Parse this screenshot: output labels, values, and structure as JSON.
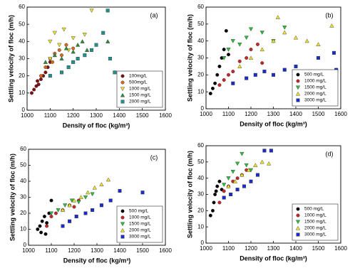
{
  "chart_data": [
    {
      "type": "scatter",
      "panel_label": "(a)",
      "xlabel": "Density  of floc (kg/m³)",
      "ylabel": "Settling velocity of floc (m/h)",
      "xlim": [
        1000,
        1600
      ],
      "ylim": [
        0,
        60
      ],
      "xticks": [
        1000,
        1100,
        1200,
        1300,
        1400,
        1500,
        1600
      ],
      "yticks": [
        0,
        10,
        20,
        30,
        40,
        50,
        60
      ],
      "legend": "lower right",
      "series": [
        {
          "name": "100mg/L",
          "color": "#7a1010",
          "marker": "circle",
          "x": [
            1020,
            1030,
            1040,
            1050,
            1060,
            1070,
            1080,
            1090,
            1100,
            1045
          ],
          "values": [
            10,
            12,
            14,
            15,
            18,
            20,
            22,
            25,
            28,
            17
          ]
        },
        {
          "name": "500mg/L",
          "color": "#d2691e",
          "marker": "circle",
          "x": [
            1060,
            1080,
            1100,
            1110,
            1120,
            1140,
            1150,
            1170,
            1200
          ],
          "values": [
            20,
            25,
            30,
            28,
            33,
            35,
            32,
            38,
            36
          ]
        },
        {
          "name": "1000 mg/L",
          "color": "#e8e030",
          "marker": "triangle-down",
          "x": [
            1100,
            1120,
            1140,
            1160,
            1180,
            1200,
            1250,
            1280,
            1100
          ],
          "values": [
            40,
            45,
            38,
            47,
            35,
            42,
            44,
            58,
            30
          ]
        },
        {
          "name": "1500 mg/L",
          "color": "#2e8b3a",
          "marker": "triangle-up",
          "x": [
            1080,
            1120,
            1150,
            1170,
            1200,
            1220,
            1240,
            1260,
            1350
          ],
          "values": [
            28,
            32,
            30,
            36,
            34,
            38,
            40,
            35,
            40
          ]
        },
        {
          "name": "2000 mg/L",
          "color": "#20908a",
          "marker": "square",
          "x": [
            1100,
            1150,
            1180,
            1200,
            1220,
            1250,
            1280,
            1300,
            1330,
            1350,
            1380,
            1360
          ],
          "values": [
            20,
            22,
            25,
            28,
            30,
            32,
            35,
            38,
            45,
            58,
            22,
            30
          ]
        }
      ]
    },
    {
      "type": "scatter",
      "panel_label": "(b)",
      "xlabel": "Density  of floc (kg/m³)",
      "ylabel": "Settling velocity of floc (m/h)",
      "xlim": [
        1000,
        1600
      ],
      "ylim": [
        0,
        60
      ],
      "xticks": [
        1000,
        1100,
        1200,
        1300,
        1400,
        1500,
        1600
      ],
      "yticks": [
        0,
        10,
        20,
        30,
        40,
        50,
        60
      ],
      "legend": "lower right",
      "series": [
        {
          "name": "500 mg/L",
          "color": "#000000",
          "marker": "circle",
          "x": [
            1020,
            1030,
            1040,
            1050,
            1060,
            1070,
            1080,
            1090,
            1100
          ],
          "values": [
            9,
            12,
            15,
            20,
            25,
            30,
            35,
            46,
            32
          ]
        },
        {
          "name": "1000 mg/L",
          "color": "#c0282a",
          "marker": "circle",
          "x": [
            1060,
            1080,
            1100,
            1120,
            1150,
            1180,
            1200,
            1230,
            1250
          ],
          "values": [
            14,
            17,
            20,
            22,
            28,
            30,
            35,
            38,
            27
          ]
        },
        {
          "name": "1500 mg/L",
          "color": "#2ebd3a",
          "marker": "triangle-down",
          "x": [
            1080,
            1100,
            1120,
            1150,
            1180,
            1200,
            1250,
            1300,
            1350
          ],
          "values": [
            30,
            35,
            40,
            38,
            42,
            47,
            45,
            40,
            48
          ]
        },
        {
          "name": "2000 mg/L",
          "color": "#e8e030",
          "marker": "triangle-up",
          "x": [
            1150,
            1200,
            1250,
            1300,
            1320,
            1350,
            1400,
            1450,
            1500,
            1560
          ],
          "values": [
            25,
            30,
            35,
            40,
            54,
            45,
            42,
            40,
            38,
            49
          ]
        },
        {
          "name": "3000 mg/L",
          "color": "#1a2cc8",
          "marker": "square",
          "x": [
            1120,
            1180,
            1220,
            1260,
            1300,
            1350,
            1400,
            1450,
            1500,
            1570,
            1580
          ],
          "values": [
            15,
            18,
            20,
            22,
            20,
            23,
            25,
            22,
            30,
            33,
            23
          ]
        }
      ]
    },
    {
      "type": "scatter",
      "panel_label": "(c)",
      "xlabel": "Density  of floc (kg/m³)",
      "ylabel": "Settling velocity of floc (m/h)",
      "xlim": [
        1000,
        1600
      ],
      "ylim": [
        0,
        60
      ],
      "xticks": [
        1000,
        1100,
        1200,
        1300,
        1400,
        1500,
        1600
      ],
      "yticks": [
        0,
        10,
        20,
        30,
        40,
        50,
        60
      ],
      "legend": "lower right",
      "series": [
        {
          "name": "500 mg/L",
          "color": "#000000",
          "marker": "circle",
          "x": [
            1040,
            1050,
            1060,
            1070,
            1080,
            1090,
            1100,
            1055,
            1075
          ],
          "values": [
            10,
            12,
            15,
            18,
            14,
            20,
            28,
            8,
            7
          ]
        },
        {
          "name": "1000 mg/L",
          "color": "#c0282a",
          "marker": "circle",
          "x": [
            1080,
            1100,
            1120,
            1150,
            1180,
            1200,
            1220
          ],
          "values": [
            12,
            18,
            20,
            22,
            25,
            24,
            28
          ]
        },
        {
          "name": "1500 mg/L",
          "color": "#2ebd3a",
          "marker": "triangle-down",
          "x": [
            1100,
            1130,
            1160,
            1190,
            1220,
            1250,
            1280
          ],
          "values": [
            20,
            22,
            25,
            28,
            27,
            30,
            32
          ]
        },
        {
          "name": "2000 mg/L",
          "color": "#e8e030",
          "marker": "triangle-up",
          "x": [
            1150,
            1180,
            1200,
            1230,
            1260,
            1290,
            1320,
            1350
          ],
          "values": [
            22,
            25,
            28,
            30,
            33,
            36,
            38,
            41
          ]
        },
        {
          "name": "3000 mg/L",
          "color": "#1a2cc8",
          "marker": "square",
          "x": [
            1150,
            1180,
            1210,
            1250,
            1280,
            1320,
            1360,
            1400,
            1500
          ],
          "values": [
            12,
            15,
            18,
            20,
            22,
            25,
            28,
            34,
            33
          ]
        }
      ]
    },
    {
      "type": "scatter",
      "panel_label": "(d)",
      "xlabel": "Density  of floc (kg/m³)",
      "ylabel": "Settling velocity of floc (m/h)",
      "xlim": [
        1000,
        1600
      ],
      "ylim": [
        0,
        60
      ],
      "xticks": [
        1000,
        1100,
        1200,
        1300,
        1400,
        1500,
        1600
      ],
      "yticks": [
        0,
        10,
        20,
        30,
        40,
        50,
        60
      ],
      "legend": "lower right",
      "series": [
        {
          "name": "500 mg/L",
          "color": "#000000",
          "marker": "circle",
          "x": [
            1020,
            1030,
            1035,
            1040,
            1045,
            1050,
            1060,
            1070
          ],
          "values": [
            17,
            20,
            25,
            30,
            32,
            35,
            38,
            33
          ]
        },
        {
          "name": "1000 mg/L",
          "color": "#c0282a",
          "marker": "circle",
          "x": [
            1060,
            1080,
            1100,
            1120,
            1140,
            1160,
            1180
          ],
          "values": [
            25,
            32,
            35,
            38,
            40,
            42,
            45
          ]
        },
        {
          "name": "1500 mg/L",
          "color": "#2ebd3a",
          "marker": "triangle-down",
          "x": [
            1080,
            1100,
            1120,
            1140,
            1160,
            1180,
            1200
          ],
          "values": [
            36,
            40,
            44,
            49,
            55,
            48,
            45
          ]
        },
        {
          "name": "2000 mg/L",
          "color": "#e8e030",
          "marker": "triangle-up",
          "x": [
            1100,
            1130,
            1160,
            1190,
            1220,
            1250,
            1280
          ],
          "values": [
            35,
            38,
            42,
            45,
            48,
            50,
            49
          ]
        },
        {
          "name": "3000 mg/L",
          "color": "#1a2cc8",
          "marker": "square",
          "x": [
            1080,
            1110,
            1140,
            1170,
            1200,
            1230,
            1260,
            1290
          ],
          "values": [
            28,
            30,
            33,
            35,
            38,
            42,
            57,
            57
          ]
        }
      ]
    }
  ]
}
